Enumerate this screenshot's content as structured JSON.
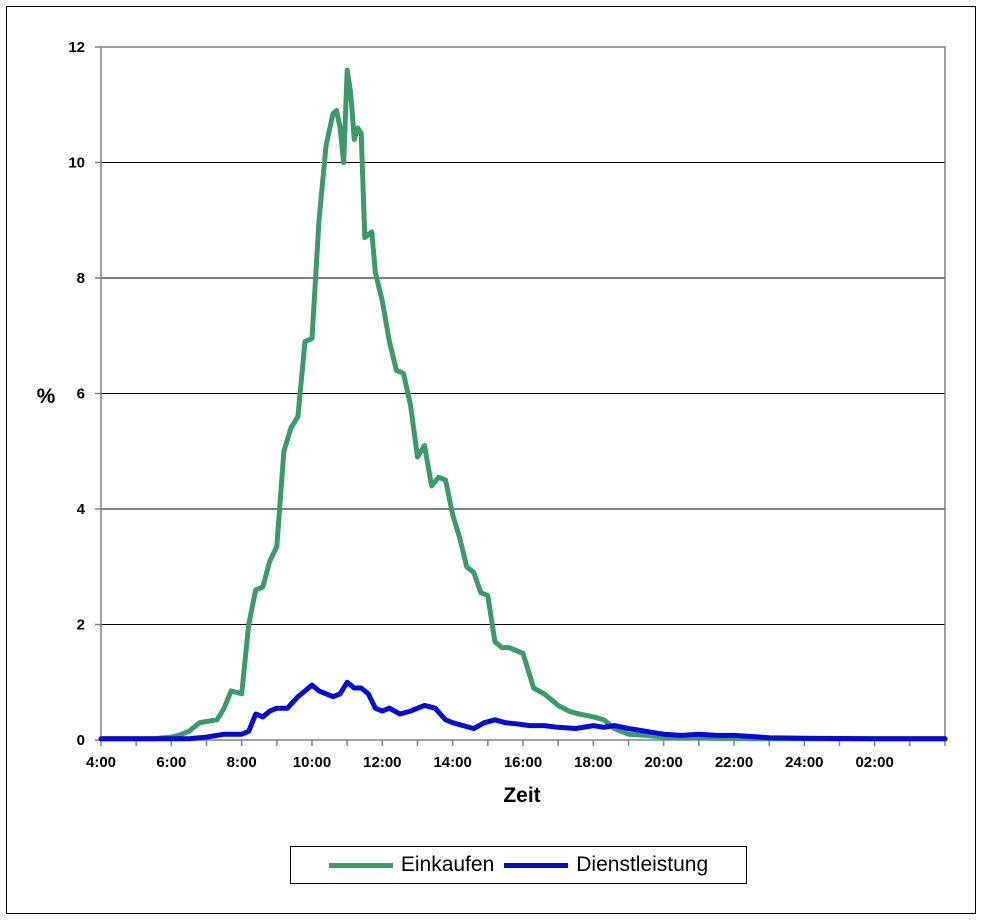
{
  "chart_data": {
    "type": "line",
    "title": "",
    "xlabel": "Zeit",
    "ylabel": "%",
    "ylim": [
      0,
      12
    ],
    "yticks": [
      "0",
      "2",
      "4",
      "6",
      "8",
      "10",
      "12"
    ],
    "xlim": [
      4,
      28
    ],
    "xtick_labels": [
      "4:00",
      "6:00",
      "8:00",
      "10:00",
      "12:00",
      "14:00",
      "16:00",
      "18:00",
      "20:00",
      "22:00",
      "24:00",
      "02:00"
    ],
    "grid": "horizontal",
    "legend_position": "bottom",
    "series": [
      {
        "name": "Einkaufen",
        "color": "#3a9a6a",
        "x": [
          4.0,
          5.5,
          6.0,
          6.2,
          6.5,
          6.8,
          7.0,
          7.3,
          7.5,
          7.7,
          8.0,
          8.2,
          8.4,
          8.6,
          8.8,
          9.0,
          9.2,
          9.4,
          9.6,
          9.8,
          10.0,
          10.2,
          10.4,
          10.6,
          10.7,
          10.8,
          10.9,
          11.0,
          11.1,
          11.2,
          11.3,
          11.4,
          11.5,
          11.7,
          11.8,
          12.0,
          12.2,
          12.4,
          12.6,
          12.8,
          13.0,
          13.2,
          13.4,
          13.6,
          13.8,
          14.0,
          14.2,
          14.4,
          14.6,
          14.8,
          15.0,
          15.2,
          15.4,
          15.6,
          15.8,
          16.0,
          16.3,
          16.6,
          16.8,
          17.0,
          17.3,
          17.6,
          18.0,
          18.3,
          18.6,
          19.0,
          19.5,
          20.0,
          20.5,
          21.0,
          21.5,
          22.0,
          22.5,
          23.0,
          24.0,
          26.0,
          28.0
        ],
        "y": [
          0.02,
          0.02,
          0.05,
          0.08,
          0.15,
          0.3,
          0.32,
          0.35,
          0.55,
          0.85,
          0.8,
          2.0,
          2.6,
          2.65,
          3.1,
          3.35,
          5.0,
          5.4,
          5.6,
          6.9,
          6.95,
          9.0,
          10.3,
          10.85,
          10.9,
          10.6,
          10.0,
          11.6,
          11.2,
          10.4,
          10.6,
          10.5,
          8.7,
          8.8,
          8.1,
          7.6,
          6.9,
          6.4,
          6.35,
          5.8,
          4.9,
          5.1,
          4.4,
          4.55,
          4.5,
          3.9,
          3.5,
          3.0,
          2.9,
          2.55,
          2.5,
          1.7,
          1.6,
          1.6,
          1.55,
          1.5,
          0.9,
          0.8,
          0.7,
          0.6,
          0.5,
          0.45,
          0.4,
          0.35,
          0.2,
          0.1,
          0.08,
          0.05,
          0.05,
          0.04,
          0.03,
          0.03,
          0.02,
          0.02,
          0.02,
          0.02,
          0.02
        ]
      },
      {
        "name": "Dienstleistung",
        "color": "#0a0ad8",
        "x": [
          4.0,
          6.5,
          7.0,
          7.5,
          8.0,
          8.2,
          8.4,
          8.6,
          8.8,
          9.0,
          9.3,
          9.6,
          9.8,
          10.0,
          10.2,
          10.4,
          10.6,
          10.8,
          11.0,
          11.2,
          11.4,
          11.6,
          11.8,
          12.0,
          12.2,
          12.5,
          12.8,
          13.0,
          13.2,
          13.5,
          13.8,
          14.0,
          14.3,
          14.6,
          14.9,
          15.2,
          15.5,
          15.8,
          16.2,
          16.6,
          17.0,
          17.5,
          18.0,
          18.3,
          18.6,
          19.0,
          19.5,
          20.0,
          20.5,
          21.0,
          21.5,
          22.0,
          22.5,
          23.0,
          24.0,
          26.0,
          28.0
        ],
        "y": [
          0.02,
          0.02,
          0.05,
          0.1,
          0.1,
          0.15,
          0.45,
          0.4,
          0.5,
          0.55,
          0.55,
          0.75,
          0.85,
          0.95,
          0.85,
          0.8,
          0.75,
          0.8,
          1.0,
          0.9,
          0.9,
          0.8,
          0.55,
          0.5,
          0.55,
          0.45,
          0.5,
          0.55,
          0.6,
          0.55,
          0.35,
          0.3,
          0.25,
          0.2,
          0.3,
          0.35,
          0.3,
          0.28,
          0.25,
          0.25,
          0.22,
          0.2,
          0.25,
          0.22,
          0.25,
          0.2,
          0.15,
          0.1,
          0.08,
          0.1,
          0.08,
          0.08,
          0.06,
          0.04,
          0.03,
          0.02,
          0.02
        ]
      }
    ]
  }
}
